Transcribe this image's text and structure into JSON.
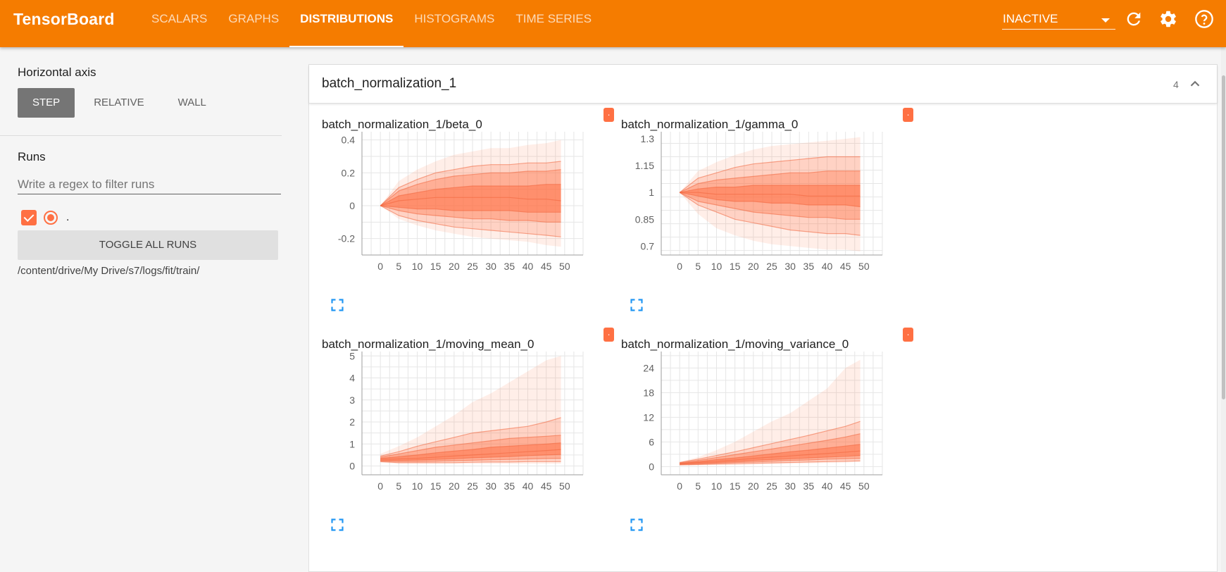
{
  "app": {
    "title": "TensorBoard",
    "tabs": [
      {
        "label": "Scalars",
        "active": false
      },
      {
        "label": "Graphs",
        "active": false
      },
      {
        "label": "Distributions",
        "active": true
      },
      {
        "label": "Histograms",
        "active": false
      },
      {
        "label": "Time Series",
        "active": false
      }
    ],
    "status": "INACTIVE",
    "icons": {
      "reload": "refresh-icon",
      "settings": "gear-icon",
      "help": "help-icon"
    }
  },
  "sidebar": {
    "horizontal_axis_label": "Horizontal axis",
    "axis_options": [
      "Step",
      "Relative",
      "Wall"
    ],
    "axis_selected": "Step",
    "runs_label": "Runs",
    "regex_placeholder": "Write a regex to filter runs",
    "regex_value": "",
    "runs": [
      {
        "name": ".",
        "checked": true,
        "color": "#ff7043"
      }
    ],
    "toggle_all_label": "Toggle all runs",
    "log_dir": "/content/drive/My Drive/s7/logs/fit/train/"
  },
  "panel": {
    "title": "batch_normalization_1",
    "count": "4",
    "collapse_icon": "chevron-up-icon"
  },
  "colors": {
    "accent": "#f57c00",
    "run": "#ff7043"
  },
  "charts": [
    {
      "title": "batch_normalization_1/beta_0",
      "badge": ".",
      "x_ticks": [
        0,
        5,
        10,
        15,
        20,
        25,
        30,
        35,
        40,
        45,
        50
      ],
      "y_ticks": [
        0.4,
        0.2,
        0,
        -0.2
      ],
      "chart_data": {
        "type": "area",
        "x": [
          0,
          5,
          10,
          15,
          20,
          25,
          30,
          35,
          40,
          45,
          49
        ],
        "ylim": [
          -0.3,
          0.45
        ],
        "bands": {
          "min": [
            0,
            -0.08,
            -0.12,
            -0.15,
            -0.17,
            -0.19,
            -0.2,
            -0.21,
            -0.22,
            -0.24,
            -0.25
          ],
          "p7": [
            0,
            -0.06,
            -0.09,
            -0.11,
            -0.13,
            -0.14,
            -0.15,
            -0.16,
            -0.17,
            -0.18,
            -0.19
          ],
          "p16": [
            0,
            -0.03,
            -0.05,
            -0.06,
            -0.07,
            -0.08,
            -0.08,
            -0.09,
            -0.09,
            -0.1,
            -0.1
          ],
          "p31": [
            0,
            -0.01,
            -0.02,
            -0.02,
            -0.03,
            -0.03,
            -0.03,
            -0.03,
            -0.04,
            -0.04,
            -0.04
          ],
          "median": [
            0,
            0.03,
            0.04,
            0.05,
            0.05,
            0.05,
            0.05,
            0.05,
            0.04,
            0.04,
            0.03
          ],
          "p69": [
            0,
            0.06,
            0.08,
            0.1,
            0.11,
            0.12,
            0.12,
            0.12,
            0.12,
            0.13,
            0.13
          ],
          "p84": [
            0,
            0.09,
            0.13,
            0.16,
            0.18,
            0.19,
            0.2,
            0.2,
            0.21,
            0.21,
            0.22
          ],
          "p93": [
            0,
            0.11,
            0.16,
            0.2,
            0.22,
            0.24,
            0.25,
            0.25,
            0.26,
            0.26,
            0.27
          ],
          "max": [
            0,
            0.15,
            0.22,
            0.27,
            0.31,
            0.33,
            0.35,
            0.35,
            0.37,
            0.38,
            0.4
          ]
        }
      }
    },
    {
      "title": "batch_normalization_1/gamma_0",
      "badge": ".",
      "x_ticks": [
        0,
        5,
        10,
        15,
        20,
        25,
        30,
        35,
        40,
        45,
        50
      ],
      "y_ticks": [
        1.3,
        1.15,
        1,
        0.85,
        0.7
      ],
      "chart_data": {
        "type": "area",
        "x": [
          0,
          5,
          10,
          15,
          20,
          25,
          30,
          35,
          40,
          45,
          49
        ],
        "ylim": [
          0.65,
          1.34
        ],
        "bands": {
          "min": [
            1,
            0.88,
            0.8,
            0.76,
            0.73,
            0.71,
            0.7,
            0.69,
            0.68,
            0.68,
            0.67
          ],
          "p7": [
            1,
            0.93,
            0.89,
            0.85,
            0.83,
            0.81,
            0.79,
            0.78,
            0.77,
            0.77,
            0.76
          ],
          "p16": [
            1,
            0.95,
            0.93,
            0.91,
            0.89,
            0.88,
            0.87,
            0.86,
            0.86,
            0.85,
            0.85
          ],
          "p31": [
            1,
            0.98,
            0.96,
            0.95,
            0.95,
            0.94,
            0.94,
            0.93,
            0.93,
            0.93,
            0.92
          ],
          "median": [
            1,
            1.0,
            0.99,
            0.99,
            0.99,
            0.99,
            0.99,
            0.98,
            0.98,
            0.98,
            0.98
          ],
          "p69": [
            1,
            1.02,
            1.03,
            1.03,
            1.04,
            1.04,
            1.04,
            1.04,
            1.04,
            1.04,
            1.04
          ],
          "p84": [
            1,
            1.05,
            1.07,
            1.08,
            1.09,
            1.1,
            1.11,
            1.11,
            1.12,
            1.12,
            1.12
          ],
          "p93": [
            1,
            1.08,
            1.11,
            1.14,
            1.16,
            1.17,
            1.18,
            1.19,
            1.2,
            1.2,
            1.2
          ],
          "max": [
            1,
            1.12,
            1.17,
            1.21,
            1.24,
            1.26,
            1.27,
            1.28,
            1.29,
            1.3,
            1.31
          ]
        }
      }
    },
    {
      "title": "batch_normalization_1/moving_mean_0",
      "badge": ".",
      "x_ticks": [
        0,
        5,
        10,
        15,
        20,
        25,
        30,
        35,
        40,
        45,
        50
      ],
      "y_ticks": [
        5,
        4,
        3,
        2,
        1,
        0
      ],
      "chart_data": {
        "type": "area",
        "x": [
          0,
          5,
          10,
          15,
          20,
          25,
          30,
          35,
          40,
          45,
          49
        ],
        "ylim": [
          -0.4,
          5.2
        ],
        "bands": {
          "min": [
            0.15,
            0.1,
            0.1,
            0.1,
            0.1,
            0.1,
            0.1,
            0.1,
            0.1,
            0.1,
            0.1
          ],
          "p7": [
            0.2,
            0.15,
            0.15,
            0.15,
            0.15,
            0.17,
            0.18,
            0.18,
            0.2,
            0.2,
            0.2
          ],
          "p16": [
            0.22,
            0.2,
            0.2,
            0.22,
            0.24,
            0.26,
            0.28,
            0.3,
            0.32,
            0.34,
            0.35
          ],
          "p31": [
            0.25,
            0.25,
            0.27,
            0.3,
            0.33,
            0.37,
            0.4,
            0.43,
            0.47,
            0.5,
            0.52
          ],
          "median": [
            0.3,
            0.32,
            0.35,
            0.4,
            0.45,
            0.5,
            0.55,
            0.6,
            0.65,
            0.7,
            0.75
          ],
          "p69": [
            0.35,
            0.42,
            0.5,
            0.6,
            0.68,
            0.75,
            0.85,
            0.9,
            0.95,
            1.0,
            1.05
          ],
          "p84": [
            0.4,
            0.55,
            0.7,
            0.85,
            0.95,
            1.05,
            1.15,
            1.25,
            1.3,
            1.35,
            1.4
          ],
          "p93": [
            0.45,
            0.65,
            0.9,
            1.1,
            1.3,
            1.5,
            1.6,
            1.7,
            1.8,
            2.0,
            2.2
          ],
          "max": [
            0.55,
            0.9,
            1.3,
            1.8,
            2.3,
            2.9,
            3.3,
            3.8,
            4.3,
            4.8,
            5.0
          ]
        }
      }
    },
    {
      "title": "batch_normalization_1/moving_variance_0",
      "badge": ".",
      "x_ticks": [
        0,
        5,
        10,
        15,
        20,
        25,
        30,
        35,
        40,
        45,
        50
      ],
      "y_ticks": [
        24,
        18,
        12,
        6,
        0
      ],
      "chart_data": {
        "type": "area",
        "x": [
          0,
          5,
          10,
          15,
          20,
          25,
          30,
          35,
          40,
          45,
          49
        ],
        "ylim": [
          -2,
          28
        ],
        "bands": {
          "min": [
            0.3,
            0.3,
            0.4,
            0.4,
            0.5,
            0.6,
            0.7,
            0.8,
            0.9,
            1.0,
            1.1
          ],
          "p7": [
            0.4,
            0.5,
            0.6,
            0.7,
            0.8,
            0.9,
            1.0,
            1.1,
            1.2,
            1.3,
            1.4
          ],
          "p16": [
            0.5,
            0.6,
            0.8,
            1.0,
            1.1,
            1.3,
            1.5,
            1.6,
            1.8,
            1.9,
            2.0
          ],
          "p31": [
            0.6,
            0.8,
            1.0,
            1.2,
            1.5,
            1.7,
            1.9,
            2.1,
            2.3,
            2.5,
            2.7
          ],
          "median": [
            0.7,
            1.0,
            1.3,
            1.6,
            2.0,
            2.3,
            2.6,
            2.9,
            3.2,
            3.5,
            3.8
          ],
          "p69": [
            0.8,
            1.2,
            1.7,
            2.1,
            2.6,
            3.1,
            3.6,
            4.0,
            4.5,
            5.0,
            5.4
          ],
          "p84": [
            0.9,
            1.5,
            2.2,
            2.9,
            3.6,
            4.3,
            5.0,
            5.7,
            6.4,
            7.2,
            8.0
          ],
          "p93": [
            1.0,
            1.8,
            2.7,
            3.6,
            4.6,
            5.6,
            6.6,
            7.6,
            8.7,
            9.8,
            11.0
          ],
          "max": [
            1.1,
            2.3,
            4.0,
            6.0,
            8.5,
            11.0,
            13.0,
            16.0,
            19.0,
            24.0,
            26.0
          ]
        }
      }
    }
  ]
}
